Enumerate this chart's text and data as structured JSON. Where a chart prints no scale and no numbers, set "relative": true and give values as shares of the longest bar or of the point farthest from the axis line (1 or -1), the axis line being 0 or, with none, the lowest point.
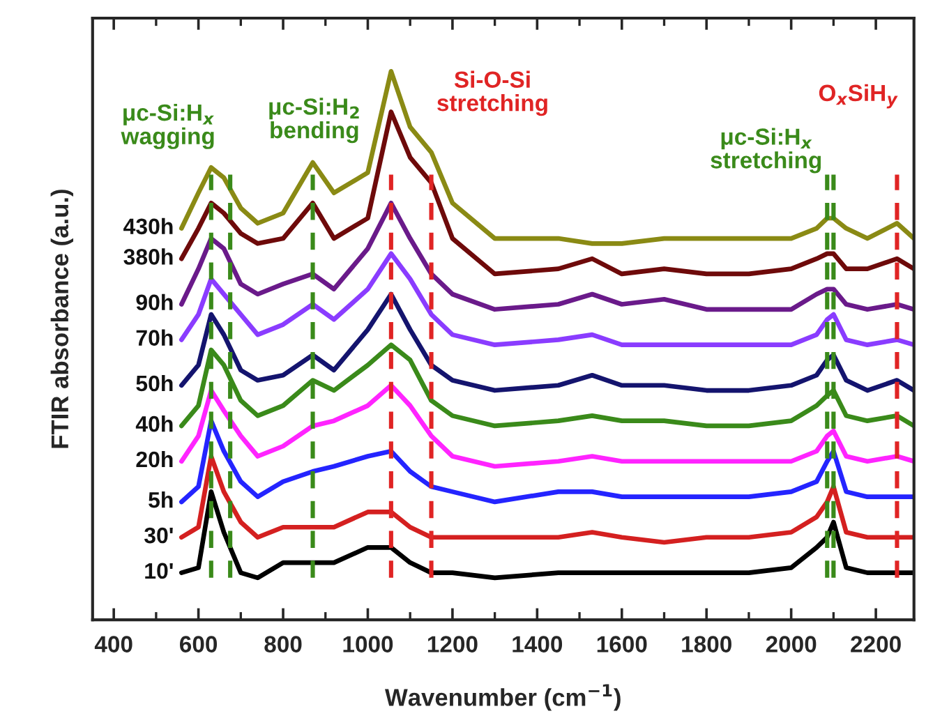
{
  "chart_data": {
    "type": "line",
    "relative": true,
    "xlabel": "Wavenumber (cm$^{−1}$)",
    "ylabel": "FTIR absorbance (a.u.)",
    "xlim": [
      350,
      2290
    ],
    "xticks": [
      400,
      600,
      800,
      1000,
      1200,
      1400,
      1600,
      1800,
      2000,
      2200
    ],
    "tick_labels": "x",
    "grid": false,
    "legend": false,
    "line_style": "solid",
    "marker": "none",
    "x": [
      560,
      600,
      630,
      660,
      700,
      740,
      800,
      870,
      920,
      1000,
      1055,
      1100,
      1150,
      1200,
      1300,
      1450,
      1530,
      1600,
      1700,
      1800,
      1900,
      2000,
      2060,
      2085,
      2100,
      2130,
      2180,
      2250,
      2290
    ],
    "series": [
      {
        "name": "10'",
        "color": "#000000",
        "values": [
          0.01,
          0.02,
          0.17,
          0.09,
          0.01,
          0,
          0.03,
          0.03,
          0.03,
          0.06,
          0.06,
          0.03,
          0.01,
          0.01,
          0,
          0.01,
          0.01,
          0.01,
          0.01,
          0.01,
          0.01,
          0.02,
          0.06,
          0.08,
          0.11,
          0.02,
          0.01,
          0.01,
          0.01
        ]
      },
      {
        "name": "30'",
        "color": "#d42020",
        "values": [
          0.08,
          0.1,
          0.24,
          0.17,
          0.11,
          0.08,
          0.1,
          0.1,
          0.1,
          0.13,
          0.13,
          0.1,
          0.08,
          0.08,
          0.08,
          0.08,
          0.09,
          0.08,
          0.07,
          0.08,
          0.08,
          0.09,
          0.12,
          0.15,
          0.18,
          0.09,
          0.08,
          0.08,
          0.08
        ]
      },
      {
        "name": "5h",
        "color": "#2424ff",
        "values": [
          0.15,
          0.18,
          0.31,
          0.25,
          0.19,
          0.16,
          0.19,
          0.21,
          0.22,
          0.24,
          0.25,
          0.21,
          0.18,
          0.17,
          0.15,
          0.17,
          0.17,
          0.16,
          0.16,
          0.16,
          0.16,
          0.17,
          0.19,
          0.23,
          0.25,
          0.17,
          0.16,
          0.16,
          0.16
        ]
      },
      {
        "name": "20h",
        "color": "#ff24ff",
        "values": [
          0.23,
          0.28,
          0.37,
          0.33,
          0.28,
          0.24,
          0.26,
          0.3,
          0.31,
          0.34,
          0.38,
          0.34,
          0.28,
          0.24,
          0.22,
          0.23,
          0.24,
          0.23,
          0.23,
          0.23,
          0.23,
          0.23,
          0.25,
          0.28,
          0.29,
          0.24,
          0.23,
          0.24,
          0.23
        ]
      },
      {
        "name": "40h",
        "color": "#3a8a1a",
        "values": [
          0.3,
          0.34,
          0.45,
          0.42,
          0.35,
          0.32,
          0.34,
          0.39,
          0.37,
          0.42,
          0.46,
          0.43,
          0.35,
          0.32,
          0.3,
          0.31,
          0.32,
          0.31,
          0.31,
          0.3,
          0.3,
          0.31,
          0.34,
          0.36,
          0.37,
          0.32,
          0.31,
          0.32,
          0.3
        ]
      },
      {
        "name": "50h",
        "color": "#14146e",
        "values": [
          0.38,
          0.42,
          0.52,
          0.48,
          0.41,
          0.39,
          0.4,
          0.44,
          0.41,
          0.49,
          0.56,
          0.49,
          0.42,
          0.39,
          0.37,
          0.38,
          0.4,
          0.38,
          0.38,
          0.37,
          0.37,
          0.38,
          0.4,
          0.43,
          0.44,
          0.39,
          0.37,
          0.39,
          0.37
        ]
      },
      {
        "name": "70h",
        "color": "#8a3cff",
        "values": [
          0.47,
          0.52,
          0.59,
          0.56,
          0.52,
          0.48,
          0.5,
          0.54,
          0.51,
          0.57,
          0.64,
          0.59,
          0.52,
          0.48,
          0.46,
          0.47,
          0.48,
          0.46,
          0.46,
          0.46,
          0.46,
          0.46,
          0.48,
          0.51,
          0.52,
          0.47,
          0.46,
          0.47,
          0.46
        ]
      },
      {
        "name": "90h",
        "color": "#6a1a8a",
        "values": [
          0.54,
          0.61,
          0.67,
          0.65,
          0.58,
          0.56,
          0.58,
          0.6,
          0.57,
          0.65,
          0.74,
          0.67,
          0.6,
          0.56,
          0.53,
          0.54,
          0.56,
          0.54,
          0.55,
          0.53,
          0.53,
          0.53,
          0.56,
          0.57,
          0.57,
          0.54,
          0.53,
          0.54,
          0.53
        ]
      },
      {
        "name": "380h",
        "color": "#6e0a0a",
        "values": [
          0.63,
          0.69,
          0.74,
          0.72,
          0.68,
          0.66,
          0.67,
          0.74,
          0.67,
          0.71,
          0.92,
          0.83,
          0.78,
          0.67,
          0.6,
          0.61,
          0.63,
          0.6,
          0.61,
          0.6,
          0.6,
          0.61,
          0.63,
          0.64,
          0.64,
          0.61,
          0.61,
          0.63,
          0.61
        ]
      },
      {
        "name": "430h",
        "color": "#8a8a14",
        "values": [
          0.69,
          0.76,
          0.81,
          0.79,
          0.73,
          0.7,
          0.72,
          0.82,
          0.76,
          0.8,
          1.0,
          0.89,
          0.84,
          0.74,
          0.67,
          0.67,
          0.66,
          0.66,
          0.67,
          0.67,
          0.67,
          0.67,
          0.69,
          0.71,
          0.71,
          0.69,
          0.67,
          0.7,
          0.67
        ]
      }
    ],
    "ref_lines": [
      {
        "axis": "x",
        "value": 630,
        "color": "#3a8a1a",
        "line_style": "dashed"
      },
      {
        "axis": "x",
        "value": 675,
        "color": "#3a8a1a",
        "line_style": "dashed"
      },
      {
        "axis": "x",
        "value": 870,
        "color": "#3a8a1a",
        "line_style": "dashed"
      },
      {
        "axis": "x",
        "value": 2085,
        "color": "#3a8a1a",
        "line_style": "dashed"
      },
      {
        "axis": "x",
        "value": 2100,
        "color": "#3a8a1a",
        "line_style": "dashed"
      },
      {
        "axis": "x",
        "value": 1055,
        "color": "#e02424",
        "line_style": "dashed"
      },
      {
        "axis": "x",
        "value": 1150,
        "color": "#e02424",
        "line_style": "dashed"
      },
      {
        "axis": "x",
        "value": 2250,
        "color": "#e02424",
        "line_style": "dashed"
      }
    ],
    "annotations": [
      "μc-Si:H$_{x}$\nwagging",
      "μc-Si:H$_{2}$\nbending",
      "Si-O-Si\nstretching",
      "μc-Si:H$_{x}$\nstretching",
      "O$_{x}$SiH$_{y}$"
    ]
  }
}
